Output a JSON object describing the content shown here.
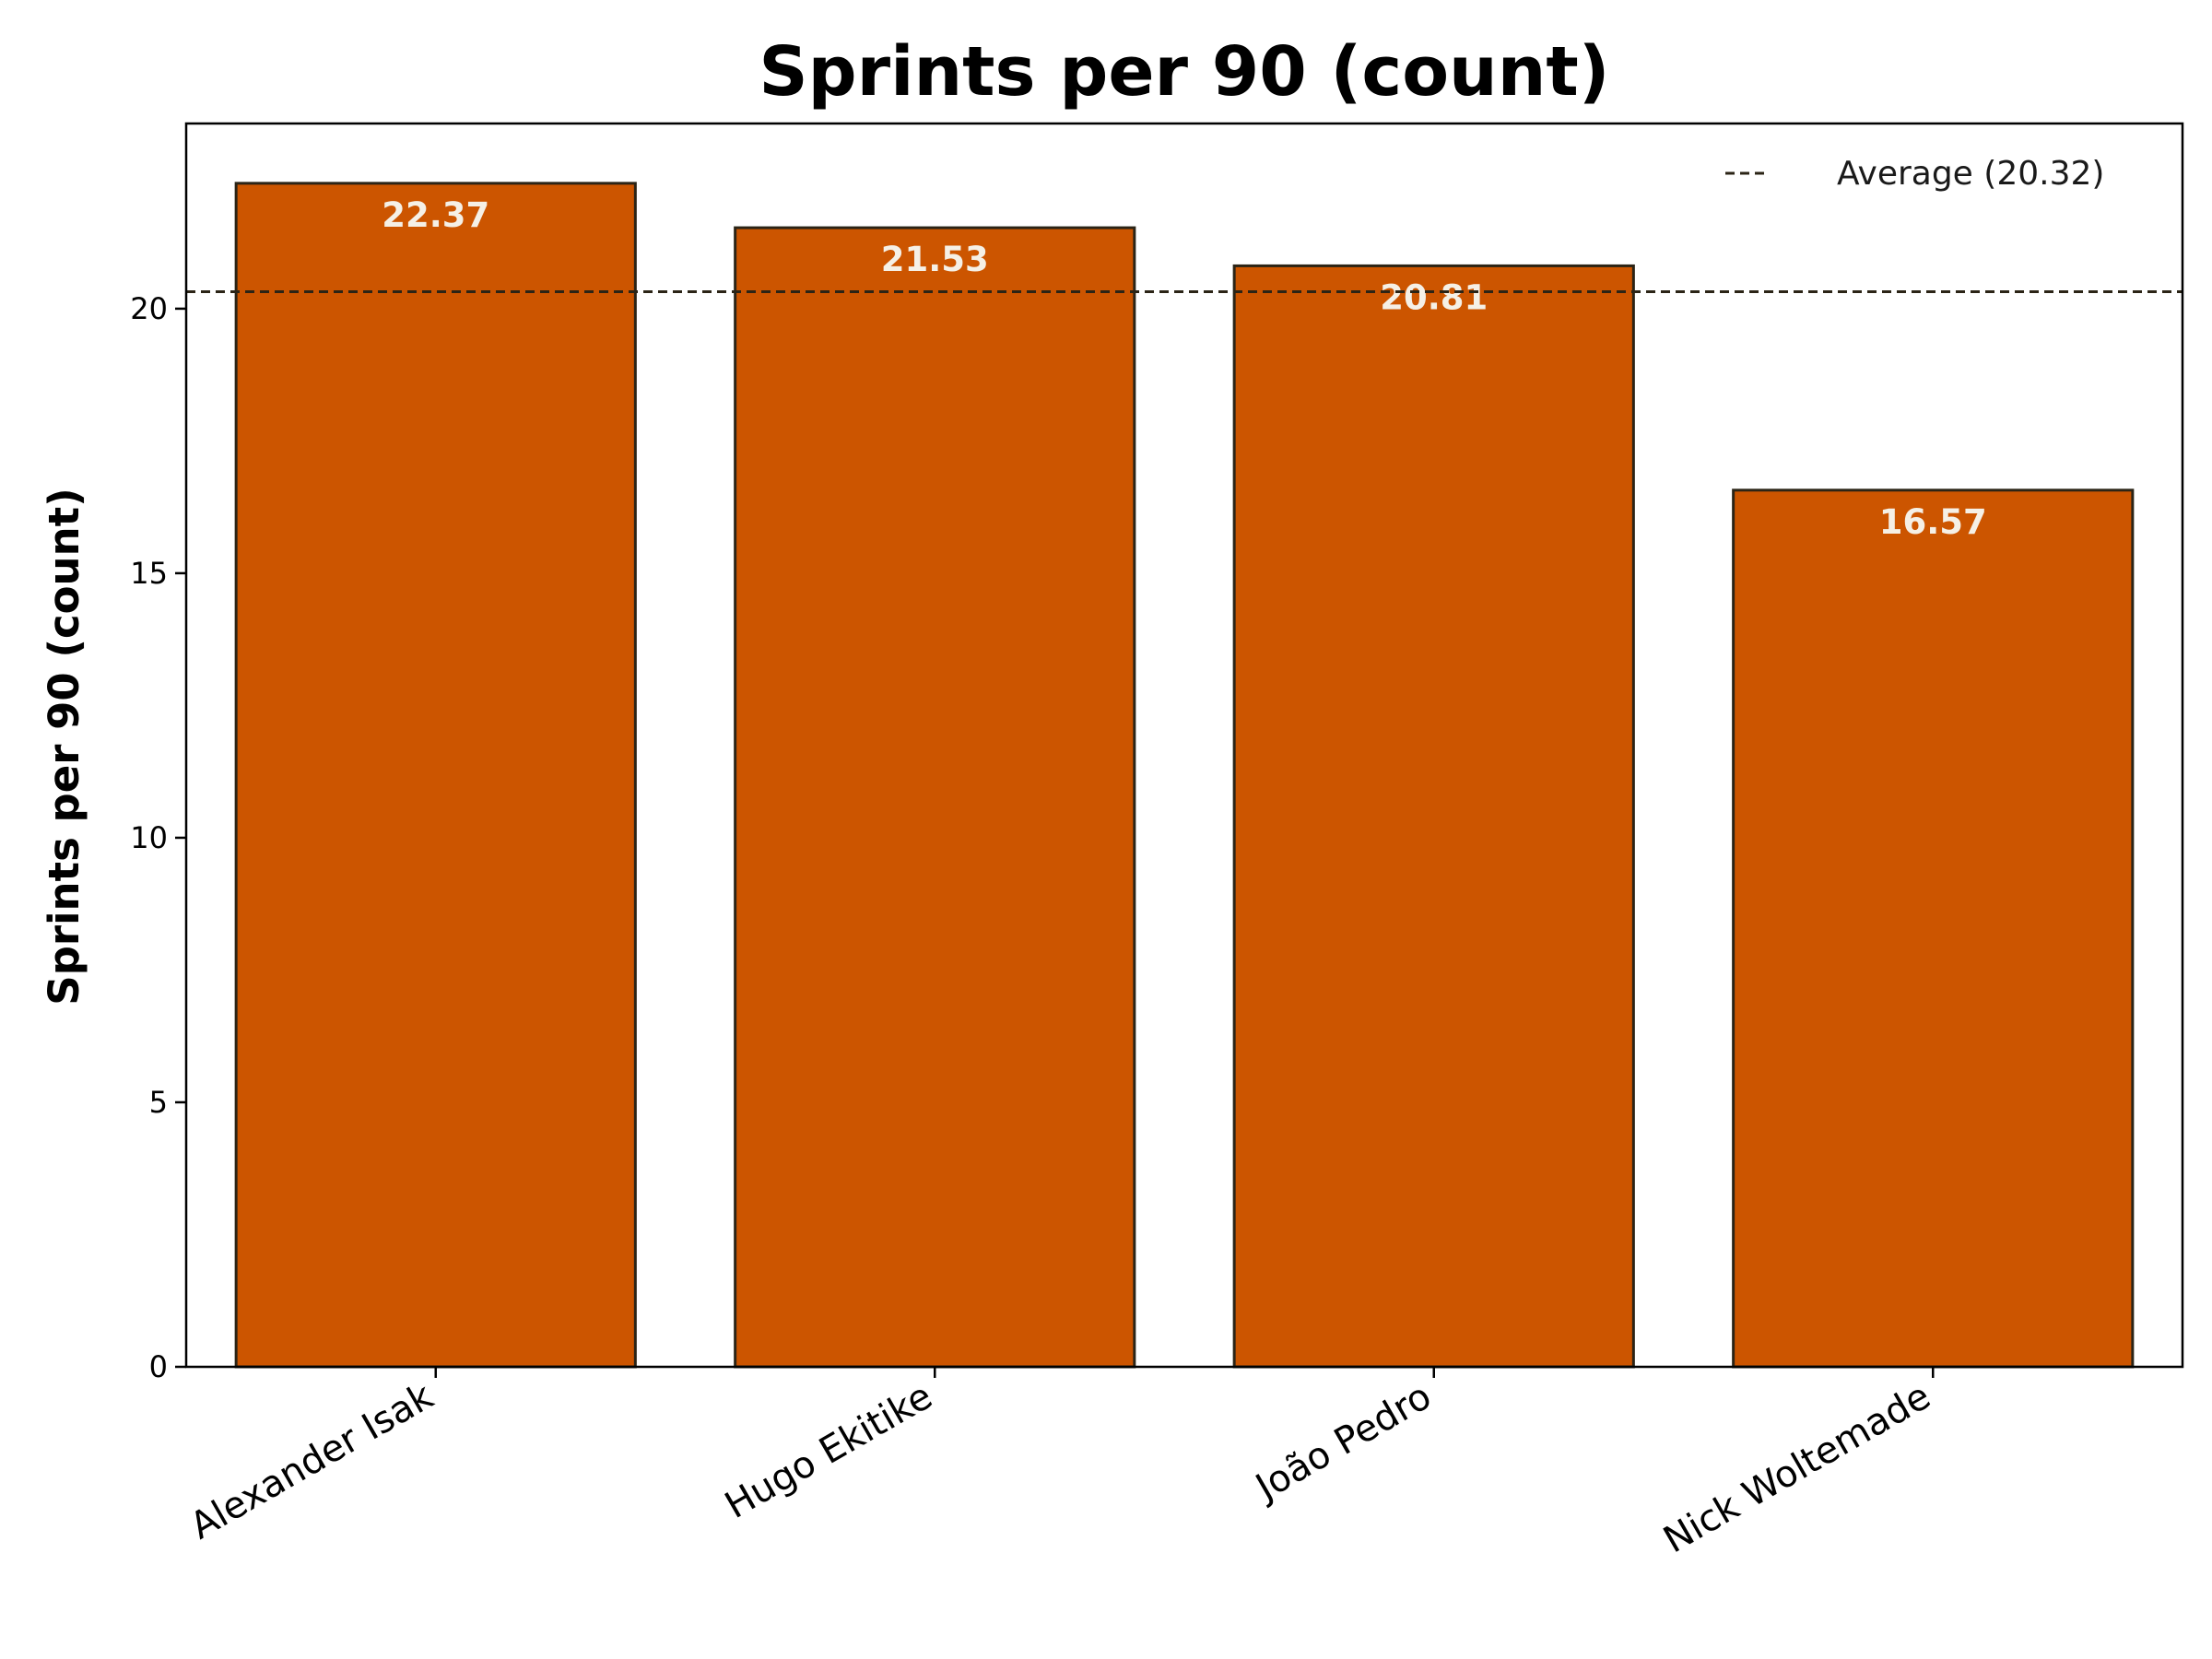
{
  "chart_data": {
    "type": "bar",
    "title": "Sprints per 90 (count)",
    "xlabel": "",
    "ylabel": "Sprints per 90 (count)",
    "categories": [
      "Alexander Isak",
      "Hugo Ekitike",
      "João Pedro",
      "Nick Woltemade"
    ],
    "values": [
      22.37,
      21.53,
      20.81,
      16.57
    ],
    "value_labels": [
      "22.37",
      "21.53",
      "20.81",
      "16.57"
    ],
    "ylim": [
      0,
      23.5
    ],
    "yticks": [
      0,
      5,
      10,
      15,
      20
    ],
    "ytick_labels": [
      "0",
      "5",
      "10",
      "15",
      "20"
    ],
    "average": {
      "value": 20.32,
      "label": "Average (20.32)",
      "style": "dashed"
    },
    "legend_position": "top-right",
    "grid": false,
    "bar_color": "#cc5500",
    "bar_edge_color": "#2b2416",
    "average_line_color": "#2b2416",
    "data_label_color": "#f5f0e6"
  }
}
